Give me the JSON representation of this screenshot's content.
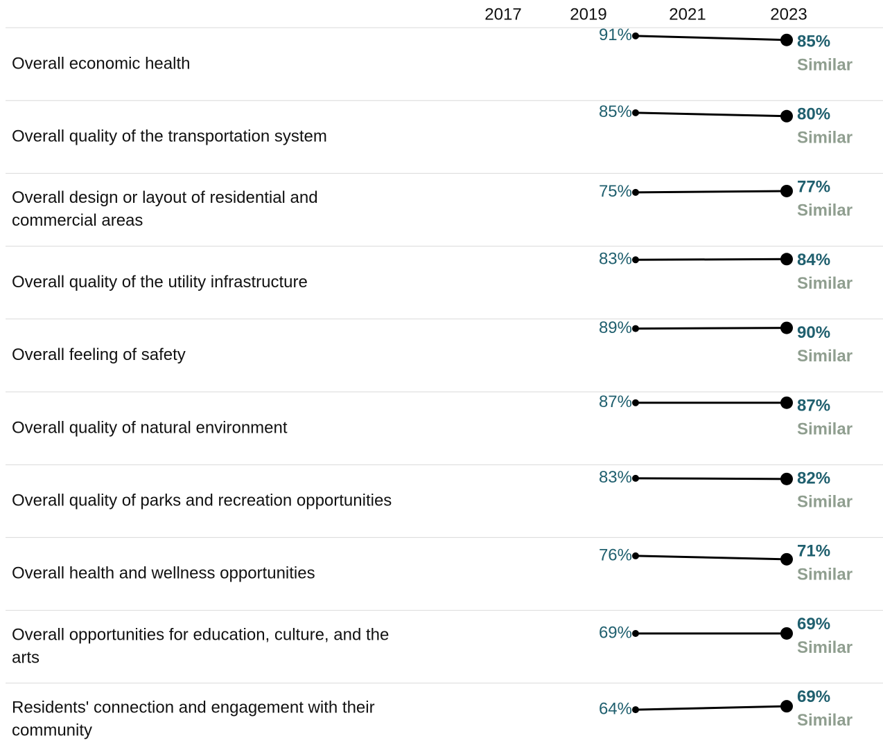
{
  "chart_data": {
    "type": "slope",
    "x": [
      "2017",
      "2019",
      "2021",
      "2023"
    ],
    "ylim": [
      0,
      100
    ],
    "line_color": "#000000",
    "value_color": "#1f5f6e",
    "comparison_color": "#8f9e8f",
    "rows": [
      {
        "label": [
          "Overall economic health"
        ],
        "values": [
          null,
          91,
          null,
          85
        ],
        "value_labels": [
          null,
          "91%",
          null,
          "85%"
        ],
        "comparison": "Similar"
      },
      {
        "label": [
          "Overall quality of the transportation system"
        ],
        "values": [
          null,
          85,
          null,
          80
        ],
        "value_labels": [
          null,
          "85%",
          null,
          "80%"
        ],
        "comparison": "Similar"
      },
      {
        "label": [
          "Overall design or layout of residential and",
          "commercial areas"
        ],
        "values": [
          null,
          75,
          null,
          77
        ],
        "value_labels": [
          null,
          "75%",
          null,
          "77%"
        ],
        "comparison": "Similar"
      },
      {
        "label": [
          "Overall quality of the utility infrastructure"
        ],
        "values": [
          null,
          83,
          null,
          84
        ],
        "value_labels": [
          null,
          "83%",
          null,
          "84%"
        ],
        "comparison": "Similar"
      },
      {
        "label": [
          "Overall feeling of safety"
        ],
        "values": [
          null,
          89,
          null,
          90
        ],
        "value_labels": [
          null,
          "89%",
          null,
          "90%"
        ],
        "comparison": "Similar"
      },
      {
        "label": [
          "Overall quality of natural environment"
        ],
        "values": [
          null,
          87,
          null,
          87
        ],
        "value_labels": [
          null,
          "87%",
          null,
          "87%"
        ],
        "comparison": "Similar"
      },
      {
        "label": [
          "Overall quality of parks and recreation opportunities"
        ],
        "values": [
          null,
          83,
          null,
          82
        ],
        "value_labels": [
          null,
          "83%",
          null,
          "82%"
        ],
        "comparison": "Similar"
      },
      {
        "label": [
          "Overall health and wellness opportunities"
        ],
        "values": [
          null,
          76,
          null,
          71
        ],
        "value_labels": [
          null,
          "76%",
          null,
          "71%"
        ],
        "comparison": "Similar"
      },
      {
        "label": [
          "Overall opportunities for education, culture, and the",
          "arts"
        ],
        "values": [
          null,
          69,
          null,
          69
        ],
        "value_labels": [
          null,
          "69%",
          null,
          "69%"
        ],
        "comparison": "Similar"
      },
      {
        "label": [
          "Residents' connection and engagement with their",
          "community"
        ],
        "values": [
          null,
          64,
          null,
          69
        ],
        "value_labels": [
          null,
          "64%",
          null,
          "69%"
        ],
        "comparison": "Similar"
      }
    ]
  }
}
